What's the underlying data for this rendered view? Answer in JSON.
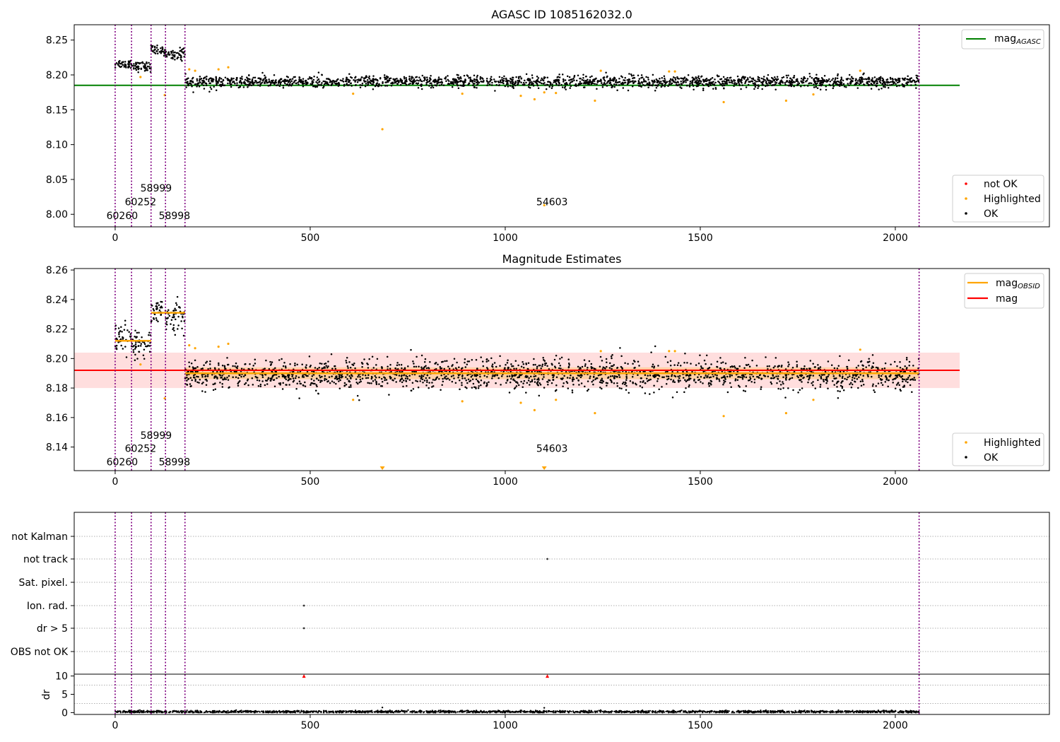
{
  "chart_data": [
    {
      "type": "scatter",
      "title": "AGASC ID 1085162032.0",
      "xlim": [
        -105,
        2395
      ],
      "ylim": [
        7.982,
        8.272
      ],
      "xticks": [
        0,
        500,
        1000,
        1500,
        2000
      ],
      "yticks": [
        8.0,
        8.05,
        8.1,
        8.15,
        8.2,
        8.25
      ],
      "ytick_labels": [
        "8.00",
        "8.05",
        "8.10",
        "8.15",
        "8.20",
        "8.25"
      ],
      "obs_boundaries": [
        0,
        42,
        92,
        129,
        179,
        2061
      ],
      "obs_labels": [
        {
          "text": "60260",
          "x": 18,
          "y": 7.998
        },
        {
          "text": "60252",
          "x": 65,
          "y": 8.018
        },
        {
          "text": "58999",
          "x": 105,
          "y": 8.038
        },
        {
          "text": "58998",
          "x": 152,
          "y": 7.998
        },
        {
          "text": "54603",
          "x": 1120,
          "y": 8.018
        }
      ],
      "reference_line": {
        "name": "mag_AGASC",
        "y": 8.185,
        "x_range": [
          -105,
          2165
        ],
        "color": "#008000"
      },
      "ok_segments": [
        {
          "x": [
            0,
            42
          ],
          "mean": 8.216,
          "noise": 0.004
        },
        {
          "x": [
            42,
            92
          ],
          "mean": 8.212,
          "noise": 0.004
        },
        {
          "x": [
            92,
            129
          ],
          "mean": 8.235,
          "noise": 0.004
        },
        {
          "x": [
            129,
            179
          ],
          "mean": 8.23,
          "noise": 0.005
        },
        {
          "x": [
            179,
            2061
          ],
          "mean": 8.19,
          "noise": 0.005
        }
      ],
      "highlighted_points": [
        [
          65,
          8.197
        ],
        [
          127,
          8.171
        ],
        [
          190,
          8.208
        ],
        [
          205,
          8.206
        ],
        [
          265,
          8.208
        ],
        [
          290,
          8.211
        ],
        [
          610,
          8.173
        ],
        [
          685,
          8.122
        ],
        [
          890,
          8.173
        ],
        [
          1040,
          8.17
        ],
        [
          1075,
          8.165
        ],
        [
          1100,
          8.175
        ],
        [
          1130,
          8.174
        ],
        [
          1230,
          8.163
        ],
        [
          1245,
          8.206
        ],
        [
          1420,
          8.205
        ],
        [
          1435,
          8.205
        ],
        [
          1560,
          8.161
        ],
        [
          1720,
          8.163
        ],
        [
          1790,
          8.172
        ],
        [
          1910,
          8.206
        ],
        [
          1100,
          8.013
        ]
      ],
      "legend_lines": [
        {
          "label": "mag",
          "sub": "AGASC",
          "color": "#008000"
        }
      ],
      "legend_points": [
        {
          "label": "not OK",
          "color": "#ff0000"
        },
        {
          "label": "Highlighted",
          "color": "#ffa500"
        },
        {
          "label": "OK",
          "color": "#000000"
        }
      ],
      "legend_placement": "top-right / bottom-right"
    },
    {
      "type": "scatter",
      "title": "Magnitude Estimates",
      "xlim": [
        -105,
        2395
      ],
      "ylim": [
        8.124,
        8.261
      ],
      "xticks": [
        0,
        500,
        1000,
        1500,
        2000
      ],
      "yticks": [
        8.14,
        8.16,
        8.18,
        8.2,
        8.22,
        8.24,
        8.26
      ],
      "ytick_labels": [
        "8.14",
        "8.16",
        "8.18",
        "8.20",
        "8.22",
        "8.24",
        "8.26"
      ],
      "obs_boundaries": [
        0,
        42,
        92,
        129,
        179,
        2061
      ],
      "obs_labels": [
        {
          "text": "60260",
          "x": 18,
          "y": 8.13
        },
        {
          "text": "60252",
          "x": 65,
          "y": 8.139
        },
        {
          "text": "58999",
          "x": 105,
          "y": 8.148
        },
        {
          "text": "58998",
          "x": 152,
          "y": 8.13
        },
        {
          "text": "54603",
          "x": 1120,
          "y": 8.139
        }
      ],
      "mag_line": {
        "name": "mag",
        "y": 8.192,
        "x_range": [
          -105,
          2165
        ],
        "band": [
          8.18,
          8.204
        ],
        "color": "#ff0000"
      },
      "obsid_mags": [
        {
          "x": [
            0,
            92
          ],
          "y": 8.212
        },
        {
          "x": [
            92,
            179
          ],
          "y": 8.231
        },
        {
          "x": [
            179,
            2061
          ],
          "y": 8.19,
          "band": [
            8.186,
            8.194
          ]
        }
      ],
      "ok_segments": [
        {
          "x": [
            0,
            42
          ],
          "mean": 8.215,
          "noise": 0.005
        },
        {
          "x": [
            42,
            92
          ],
          "mean": 8.21,
          "noise": 0.005
        },
        {
          "x": [
            92,
            129
          ],
          "mean": 8.233,
          "noise": 0.005
        },
        {
          "x": [
            129,
            179
          ],
          "mean": 8.229,
          "noise": 0.006
        },
        {
          "x": [
            179,
            2061
          ],
          "mean": 8.189,
          "noise": 0.006
        }
      ],
      "highlighted_points": [
        [
          65,
          8.196
        ],
        [
          127,
          8.173
        ],
        [
          190,
          8.209
        ],
        [
          205,
          8.207
        ],
        [
          265,
          8.208
        ],
        [
          290,
          8.21
        ],
        [
          610,
          8.172
        ],
        [
          890,
          8.171
        ],
        [
          1040,
          8.17
        ],
        [
          1075,
          8.165
        ],
        [
          1130,
          8.172
        ],
        [
          1230,
          8.163
        ],
        [
          1245,
          8.205
        ],
        [
          1420,
          8.205
        ],
        [
          1435,
          8.205
        ],
        [
          1560,
          8.161
        ],
        [
          1720,
          8.163
        ],
        [
          1790,
          8.172
        ],
        [
          1910,
          8.206
        ]
      ],
      "below_range_markers": [
        685,
        1100
      ],
      "legend_lines": [
        {
          "label": "mag",
          "sub": "OBSID",
          "color": "#ffa500"
        },
        {
          "label": "mag",
          "sub": "",
          "color": "#ff0000"
        }
      ],
      "legend_points": [
        {
          "label": "Highlighted",
          "color": "#ffa500"
        },
        {
          "label": "OK",
          "color": "#000000"
        }
      ]
    },
    {
      "type": "scatter",
      "title": "",
      "xlim": [
        -105,
        2395
      ],
      "xticks": [
        0,
        500,
        1000,
        1500,
        2000
      ],
      "obs_boundaries": [
        0,
        42,
        92,
        129,
        179,
        2061
      ],
      "flag_categories": [
        "not Kalman",
        "not track",
        "Sat. pixel.",
        "Ion. rad.",
        "dr > 5",
        "OBS not OK"
      ],
      "flag_points": [
        {
          "category": "not track",
          "x": 1108
        },
        {
          "category": "Ion. rad.",
          "x": 484
        },
        {
          "category": "dr > 5",
          "x": 484
        }
      ],
      "dr_ylabel": "dr",
      "dr_ylim": [
        -0.5,
        10.5
      ],
      "dr_yticks": [
        0,
        5,
        10
      ],
      "dr_ytick_labels": [
        "0",
        "5",
        "10"
      ],
      "dr_outliers": [
        [
          484,
          10
        ],
        [
          1108,
          10
        ]
      ],
      "dr_bumps": [
        [
          685,
          1.4
        ],
        [
          1100,
          1.3
        ]
      ],
      "dr_baseline": {
        "x": [
          0,
          2061
        ],
        "mean": 0.25,
        "noise": 0.15
      }
    }
  ],
  "colors": {
    "ok": "#000000",
    "highlighted": "#ffa500",
    "not_ok": "#ff0000",
    "boundary": "#800080",
    "agasc": "#008000",
    "mag": "#ff0000",
    "obsid": "#ffa500"
  }
}
